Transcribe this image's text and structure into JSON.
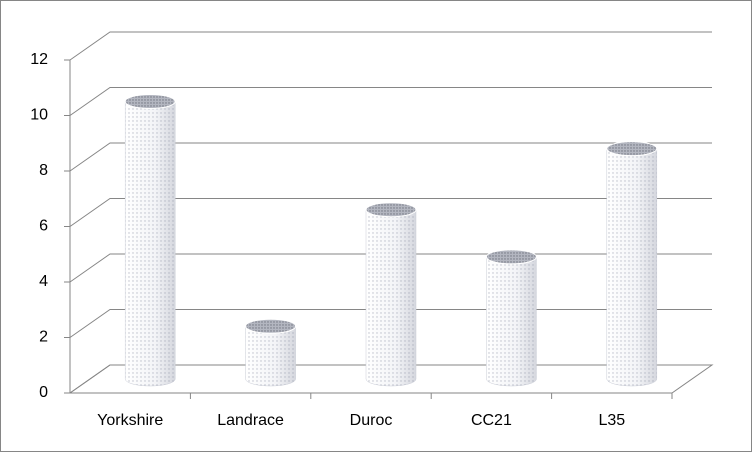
{
  "chart_data": {
    "type": "bar",
    "categories": [
      "Yorkshire",
      "Landrace",
      "Duroc",
      "CC21",
      "L35"
    ],
    "values": [
      10,
      1.9,
      6.1,
      4.4,
      8.3
    ],
    "color": "#c9ccd6",
    "ylim": [
      0,
      12
    ],
    "yticks": [
      0,
      2,
      4,
      6,
      8,
      10,
      12
    ],
    "grid": true
  }
}
